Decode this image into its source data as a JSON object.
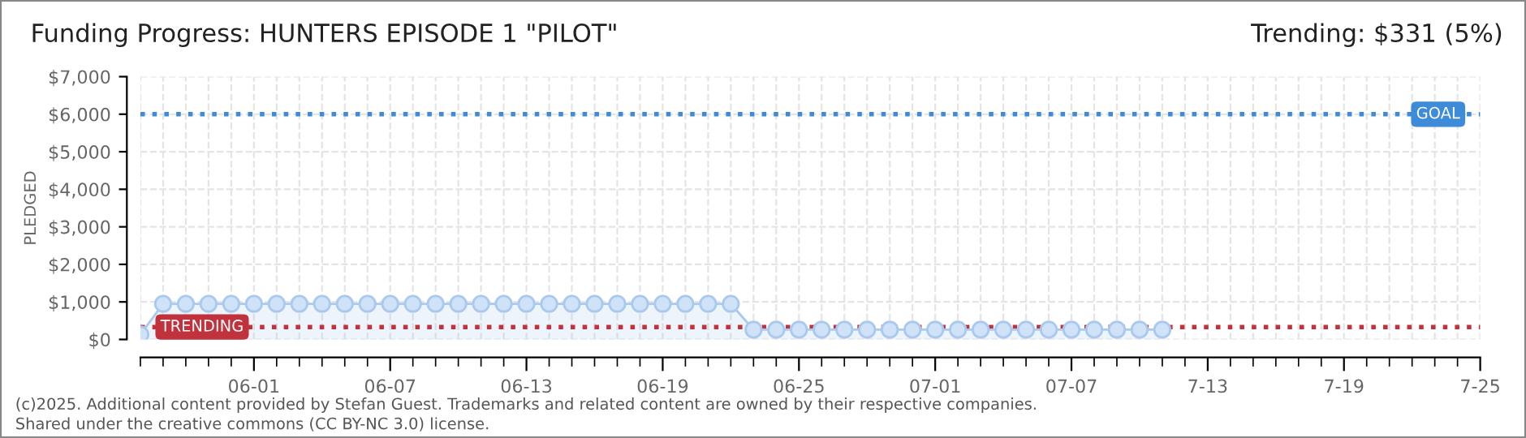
{
  "chart_data": {
    "type": "area",
    "title": "Funding Progress: HUNTERS EPISODE 1 \"PILOT\"",
    "ylabel": "PLEDGED",
    "x": [
      "2025-05-27",
      "2025-05-28",
      "2025-05-29",
      "2025-05-30",
      "2025-05-31",
      "2025-06-01",
      "2025-06-02",
      "2025-06-03",
      "2025-06-04",
      "2025-06-05",
      "2025-06-06",
      "2025-06-07",
      "2025-06-08",
      "2025-06-09",
      "2025-06-10",
      "2025-06-11",
      "2025-06-12",
      "2025-06-13",
      "2025-06-14",
      "2025-06-15",
      "2025-06-16",
      "2025-06-17",
      "2025-06-18",
      "2025-06-19",
      "2025-06-20",
      "2025-06-21",
      "2025-06-22",
      "2025-06-23",
      "2025-06-24",
      "2025-06-25",
      "2025-06-26",
      "2025-06-27",
      "2025-06-28",
      "2025-06-29",
      "2025-06-30",
      "2025-07-01",
      "2025-07-02",
      "2025-07-03",
      "2025-07-04",
      "2025-07-05",
      "2025-07-06",
      "2025-07-07",
      "2025-07-08",
      "2025-07-09",
      "2025-07-10",
      "2025-07-11"
    ],
    "series": [
      {
        "color": "#a9c9ee",
        "values": [
          130,
          950,
          950,
          950,
          950,
          950,
          950,
          950,
          950,
          950,
          950,
          950,
          950,
          950,
          950,
          950,
          950,
          950,
          950,
          950,
          950,
          950,
          950,
          950,
          950,
          950,
          950,
          260,
          260,
          260,
          260,
          260,
          260,
          260,
          260,
          260,
          260,
          260,
          260,
          260,
          260,
          260,
          260,
          260,
          260,
          260
        ]
      }
    ],
    "marker": "circle",
    "xlim": [
      "2025-05-27",
      "2025-07-25"
    ],
    "xticks": [
      {
        "value": "2025-06-01",
        "label": "06-01"
      },
      {
        "value": "2025-06-07",
        "label": "06-07"
      },
      {
        "value": "2025-06-13",
        "label": "06-13"
      },
      {
        "value": "2025-06-19",
        "label": "06-19"
      },
      {
        "value": "2025-06-25",
        "label": "06-25"
      },
      {
        "value": "2025-07-01",
        "label": "07-01"
      },
      {
        "value": "2025-07-07",
        "label": "07-07"
      },
      {
        "value": "2025-07-13",
        "label": "7-13"
      },
      {
        "value": "2025-07-19",
        "label": "7-19"
      },
      {
        "value": "2025-07-25",
        "label": "7-25"
      }
    ],
    "ylim": [
      0,
      7000
    ],
    "yticks": [
      {
        "value": 0,
        "label": "$0"
      },
      {
        "value": 1000,
        "label": "$1,000"
      },
      {
        "value": 2000,
        "label": "$2,000"
      },
      {
        "value": 3000,
        "label": "$3,000"
      },
      {
        "value": 4000,
        "label": "$4,000"
      },
      {
        "value": 5000,
        "label": "$5,000"
      },
      {
        "value": 6000,
        "label": "$6,000"
      },
      {
        "value": 7000,
        "label": "$7,000"
      }
    ],
    "grid": true,
    "ref_lines": [
      {
        "axis": "y",
        "value": 6000,
        "label": "GOAL",
        "color": "#3d8bd9",
        "line_style": "dotted"
      },
      {
        "axis": "y",
        "value": 331,
        "label": "TRENDING",
        "color": "#c0323c",
        "line_style": "dotted"
      }
    ],
    "annotations": [
      "Trending: $331 (5%)",
      "(c)2025. Additional content provided by Stefan Guest. Trademarks and related content are owned by their respective companies.",
      "Shared under the creative commons (CC BY-NC 3.0) license."
    ]
  }
}
